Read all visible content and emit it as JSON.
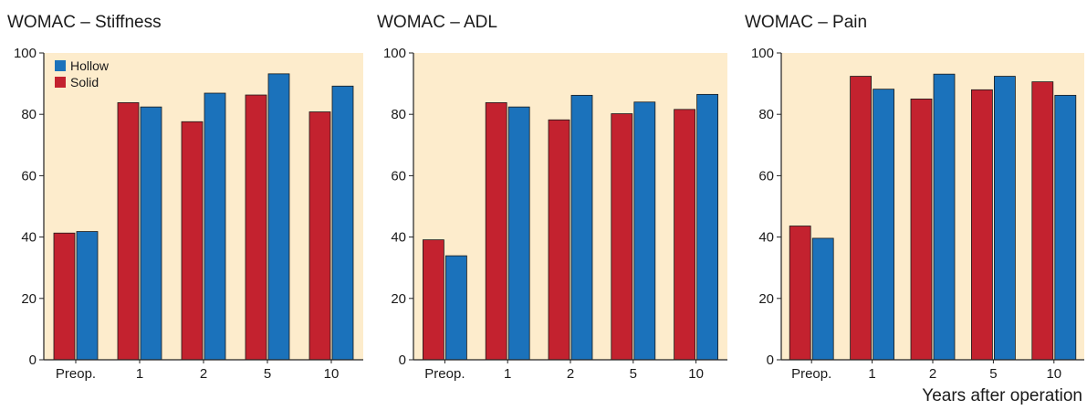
{
  "colors": {
    "plot_background": "#fdeccc",
    "solid": "#c3222f",
    "hollow": "#1b72bb",
    "axis": "#222222"
  },
  "chart_data": [
    {
      "type": "bar",
      "title": "WOMAC – Stiffness",
      "categories": [
        "Preop.",
        "1",
        "2",
        "5",
        "10"
      ],
      "ylim": [
        0,
        100
      ],
      "yticks": [
        0,
        20,
        40,
        60,
        80,
        100
      ],
      "legend": {
        "position": "top-left",
        "entries": [
          "Hollow",
          "Solid"
        ]
      },
      "series": [
        {
          "name": "Solid",
          "color": "#c3222f",
          "values": [
            41.3,
            83.8,
            77.6,
            86.3,
            80.8
          ]
        },
        {
          "name": "Hollow",
          "color": "#1b72bb",
          "values": [
            41.8,
            82.4,
            86.9,
            93.2,
            89.2
          ]
        }
      ]
    },
    {
      "type": "bar",
      "title": "WOMAC – ADL",
      "categories": [
        "Preop.",
        "1",
        "2",
        "5",
        "10"
      ],
      "ylim": [
        0,
        100
      ],
      "yticks": [
        0,
        20,
        40,
        60,
        80,
        100
      ],
      "series": [
        {
          "name": "Solid",
          "color": "#c3222f",
          "values": [
            39.1,
            83.8,
            78.2,
            80.2,
            81.6
          ]
        },
        {
          "name": "Hollow",
          "color": "#1b72bb",
          "values": [
            33.9,
            82.4,
            86.2,
            84.0,
            86.5
          ]
        }
      ]
    },
    {
      "type": "bar",
      "title": "WOMAC – Pain",
      "categories": [
        "Preop.",
        "1",
        "2",
        "5",
        "10"
      ],
      "ylim": [
        0,
        100
      ],
      "yticks": [
        0,
        20,
        40,
        60,
        80,
        100
      ],
      "xlabel": "Years after operation",
      "series": [
        {
          "name": "Solid",
          "color": "#c3222f",
          "values": [
            43.6,
            92.4,
            85.0,
            88.0,
            90.6
          ]
        },
        {
          "name": "Hollow",
          "color": "#1b72bb",
          "values": [
            39.6,
            88.2,
            93.1,
            92.4,
            86.2
          ]
        }
      ]
    }
  ]
}
